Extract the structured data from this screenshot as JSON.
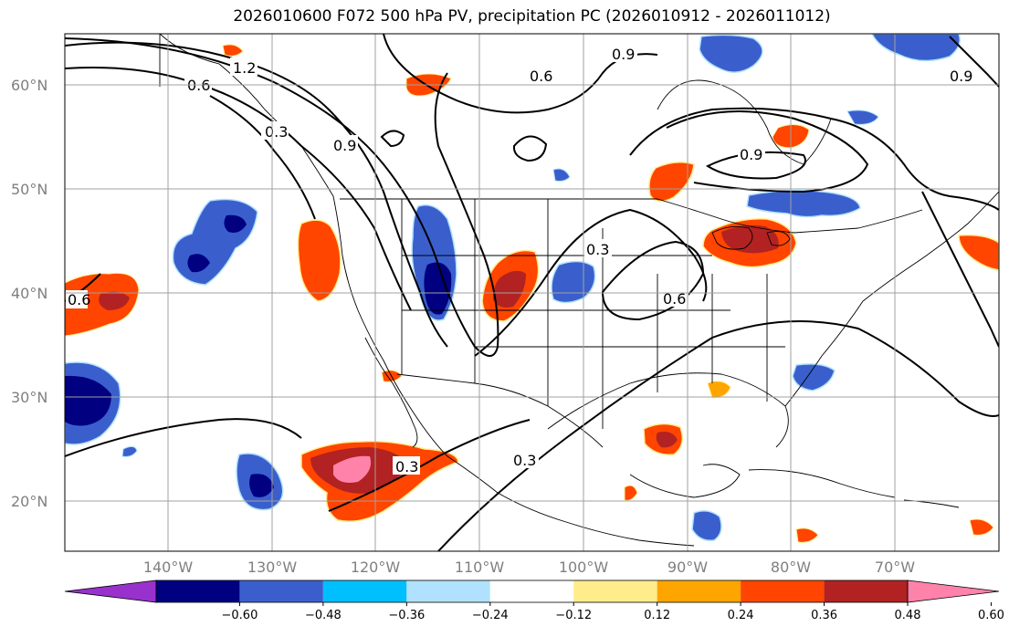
{
  "title": "2026010600 F072 500 hPa PV, precipitation PC (2026010912 - 2026011012)",
  "lat_labels": [
    "60°N",
    "50°N",
    "40°N",
    "30°N",
    "20°N"
  ],
  "lon_labels": [
    "140°W",
    "130°W",
    "120°W",
    "110°W",
    "100°W",
    "90°W",
    "80°W",
    "70°W"
  ],
  "colorbar": {
    "tick_labels": [
      "−0.60",
      "−0.48",
      "−0.36",
      "−0.24",
      "−0.12",
      "0.12",
      "0.24",
      "0.36",
      "0.48",
      "0.60"
    ],
    "colors": [
      "#9932cc",
      "#000080",
      "#3a5fcd",
      "#00bfff",
      "#b0e2ff",
      "#ffffff",
      "#ffec8b",
      "#ffa500",
      "#ff4500",
      "#b22222",
      "#ff82ab"
    ]
  },
  "contour_labels": [
    "1.2",
    "0.6",
    "0.3",
    "0.9",
    "0.6",
    "0.9",
    "0.9",
    "0.9",
    "0.3",
    "0.6",
    "0.3",
    "0.3",
    "0.6"
  ],
  "map_extent": {
    "lon": [
      -150,
      -60
    ],
    "lat": [
      15,
      65
    ]
  },
  "shading_colors": {
    "orange_red": "#ff4500",
    "firebrick": "#b22222",
    "pink": "#ff82ab",
    "royal_blue": "#3a5fcd",
    "navy": "#000080",
    "sky": "#b0e2ff",
    "yellow": "#ffec8b"
  }
}
